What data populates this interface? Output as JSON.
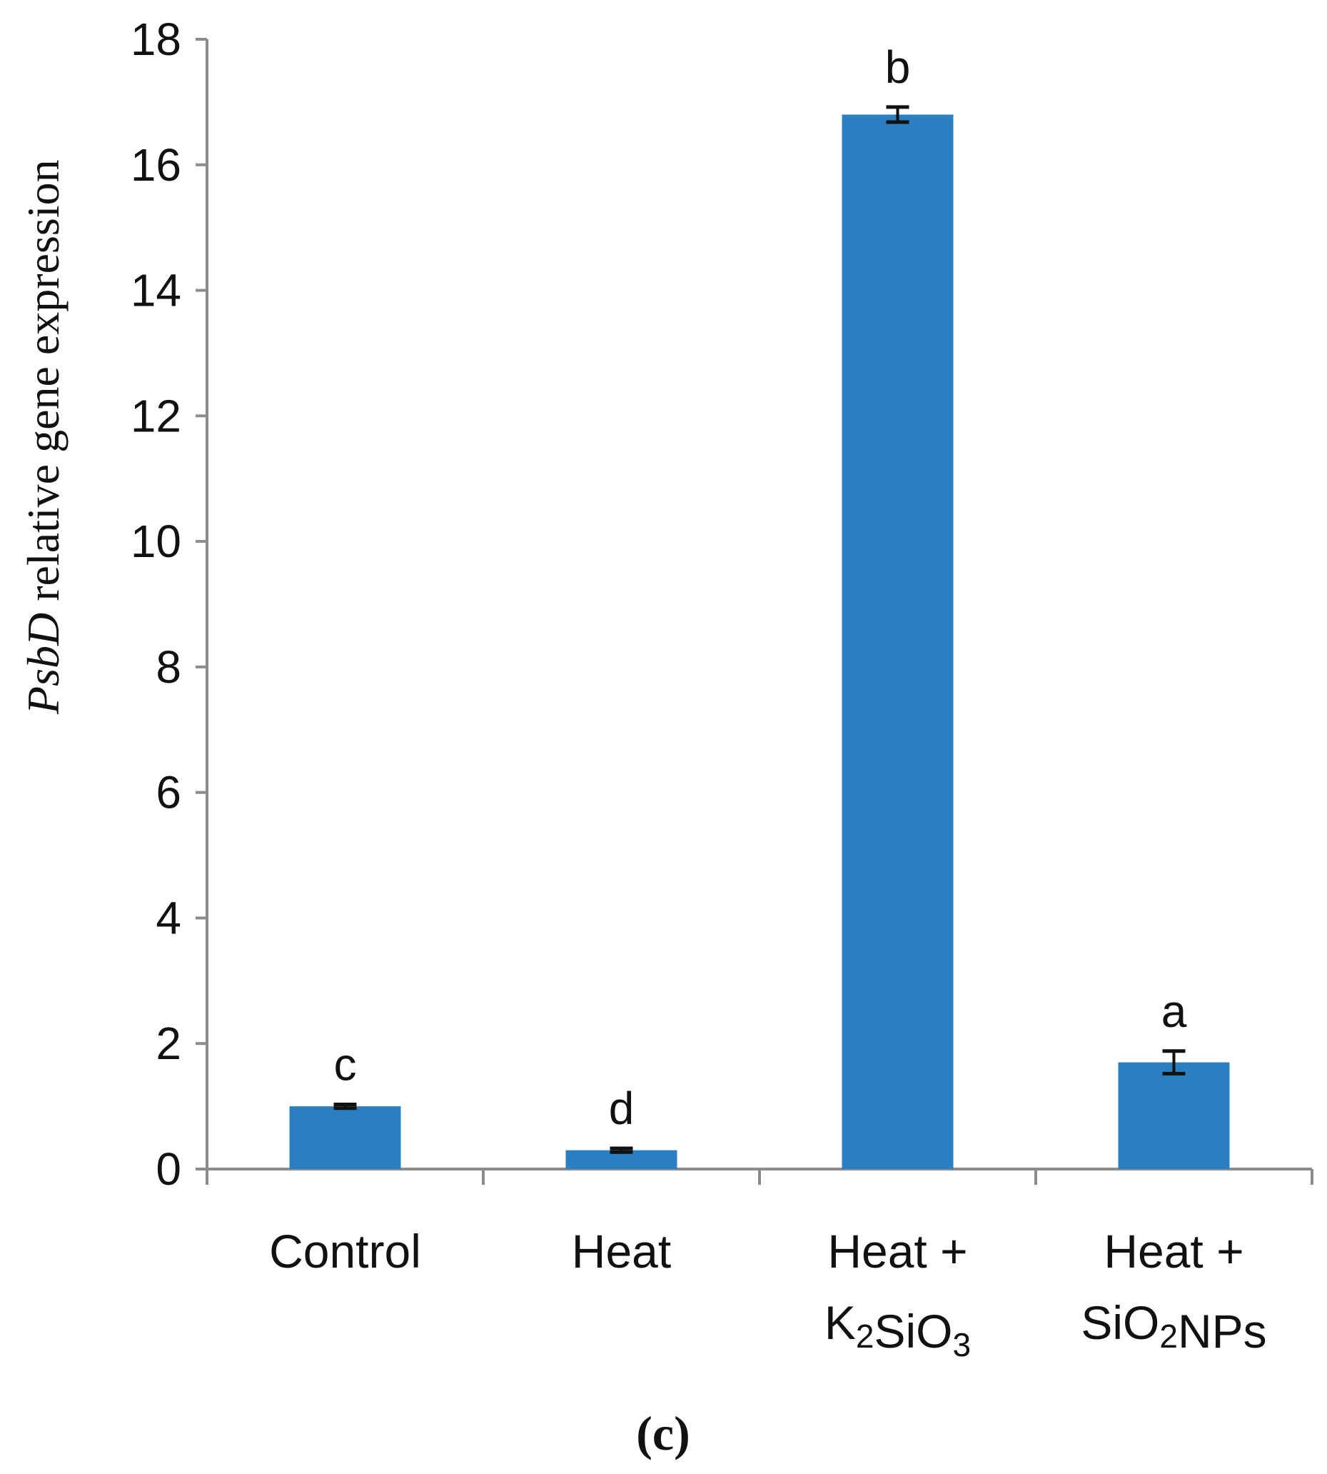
{
  "chart_data": {
    "type": "bar",
    "categories": [
      "Control",
      "Heat",
      "Heat + K2SiO3",
      "Heat + SiO2NPs"
    ],
    "category_lines": [
      [
        {
          "text": "Control"
        }
      ],
      [
        {
          "text": "Heat"
        }
      ],
      [
        {
          "text": "Heat +"
        },
        {
          "text": "K"
        },
        {
          "text": "2",
          "sub": true
        },
        {
          "text": "SiO"
        },
        {
          "text": "3",
          "sub": true
        }
      ],
      [
        {
          "text": "Heat +"
        },
        {
          "text": "SiO"
        },
        {
          "text": "2",
          "sub": true
        },
        {
          "text": "NPs"
        }
      ]
    ],
    "values": [
      1.0,
      0.3,
      16.8,
      1.7
    ],
    "errors": [
      0.03,
      0.03,
      0.12,
      0.18
    ],
    "significance": [
      "c",
      "d",
      "b",
      "a"
    ],
    "ylabel_italic": "PsbD",
    "ylabel_rest": " relative gene expression",
    "ylim": [
      0,
      18
    ],
    "yticks": [
      0,
      2,
      4,
      6,
      8,
      10,
      12,
      14,
      16,
      18
    ],
    "grid": false,
    "bar_color": "#2a80c0",
    "axis_color": "#8c8c8c",
    "error_color": "#111111",
    "panel_label": "(c)"
  }
}
